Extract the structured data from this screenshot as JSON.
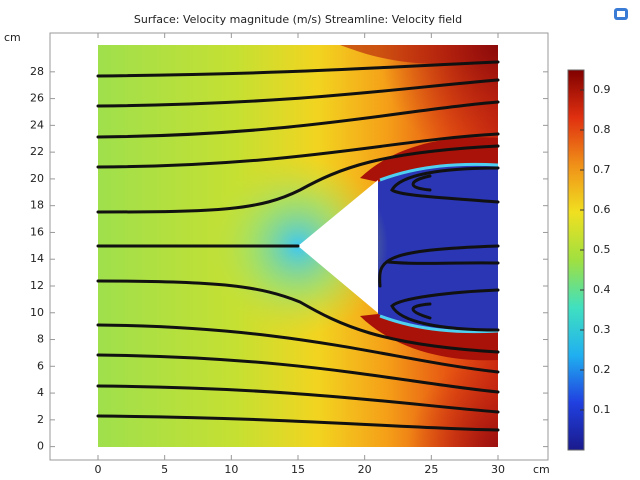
{
  "chart_data": {
    "type": "surface",
    "title": "Surface: Velocity magnitude (m/s)  Streamline: Velocity field",
    "x_unit": "cm",
    "y_unit": "cm",
    "xlim": [
      -3.6,
      33.75
    ],
    "ylim": [
      -1.0,
      30.9
    ],
    "xticks": [
      0,
      5,
      10,
      15,
      20,
      25,
      30
    ],
    "yticks": [
      0,
      2,
      4,
      6,
      8,
      10,
      12,
      14,
      16,
      18,
      20,
      22,
      24,
      26,
      28
    ],
    "zlim": [
      0,
      0.95
    ],
    "zticks": [
      0.1,
      0.2,
      0.3,
      0.4,
      0.5,
      0.6,
      0.7,
      0.8,
      0.9
    ],
    "colormap": [
      "#1a1a8c",
      "#2040e0",
      "#20b0f0",
      "#40e0c0",
      "#a0e040",
      "#f0e020",
      "#f09018",
      "#e03010",
      "#800000"
    ]
  }
}
